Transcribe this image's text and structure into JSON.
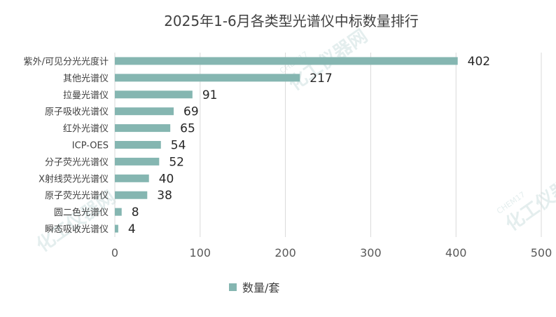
{
  "chart_data": {
    "type": "bar",
    "orientation": "horizontal",
    "title": "2025年1-6月各类型光谱仪中标数量排行",
    "categories": [
      "紫外/可见分光光度计",
      "其他光谱仪",
      "拉曼光谱仪",
      "原子吸收光谱仪",
      "红外光谱仪",
      "ICP-OES",
      "分子荧光光谱仪",
      "X射线荧光光谱仪",
      "原子荧光光谱仪",
      "圆二色光谱仪",
      "瞬态吸收光谱仪"
    ],
    "series": [
      {
        "name": "数量/套",
        "values": [
          402,
          217,
          91,
          69,
          65,
          54,
          52,
          40,
          38,
          8,
          4
        ],
        "color": "#85b6b1"
      }
    ],
    "xlim": [
      0,
      500
    ],
    "xticks": [
      "0",
      "100",
      "200",
      "300",
      "400",
      "500"
    ],
    "grid": true,
    "legend_position": "bottom"
  },
  "watermark": {
    "brand": "化工仪器网",
    "latin": "CHEM17"
  }
}
